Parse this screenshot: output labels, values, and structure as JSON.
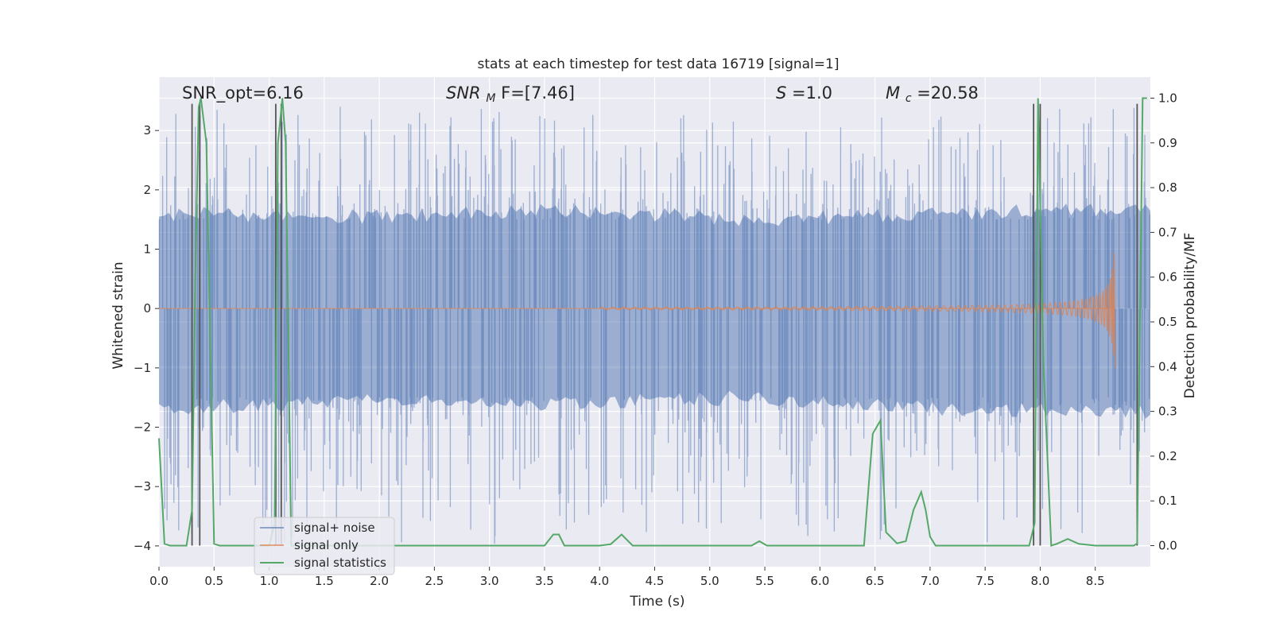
{
  "chart_data": {
    "type": "line",
    "title": "stats at each timestep for test data 16719 [signal=1]",
    "xlabel": "Time (s)",
    "ylabel": "Whitened strain",
    "y2label": "Detection probability/MF",
    "xlim": [
      0.0,
      9.0
    ],
    "ylim": [
      -4.35,
      3.9
    ],
    "y2lim": [
      -0.047,
      1.047
    ],
    "x_ticks": [
      "0.0",
      "0.5",
      "1.0",
      "1.5",
      "2.0",
      "2.5",
      "3.0",
      "3.5",
      "4.0",
      "4.5",
      "5.0",
      "5.5",
      "6.0",
      "6.5",
      "7.0",
      "7.5",
      "8.0",
      "8.5"
    ],
    "y_ticks": [
      "−4",
      "−3",
      "−2",
      "−1",
      "0",
      "1",
      "2",
      "3"
    ],
    "y2_ticks": [
      "0.0",
      "0.1",
      "0.2",
      "0.3",
      "0.4",
      "0.5",
      "0.6",
      "0.7",
      "0.8",
      "0.9",
      "1.0"
    ],
    "annotations": {
      "snr_opt": "SNR_opt=6.16",
      "snr_mf_name": "SNR",
      "snr_mf_sub": "M",
      "snr_mf_rest": "F=[7.46]",
      "s_name": "S",
      "s_rest": "=1.0",
      "mc_name": "M",
      "mc_sub": "c",
      "mc_rest": "=20.58"
    },
    "legend": {
      "position": "lower-left",
      "entries": [
        "signal+ noise",
        "signal only",
        "signal statistics"
      ]
    },
    "colors": {
      "noise": "#4c72b0",
      "signal": "#dd8452",
      "statistics": "#55a868",
      "markers": "#555555",
      "background": "#eaeaf2",
      "grid": "#ffffff"
    },
    "series": [
      {
        "name": "signal statistics",
        "axis": "right",
        "x": [
          0.0,
          0.05,
          0.1,
          0.25,
          0.3,
          0.33,
          0.36,
          0.38,
          0.43,
          0.5,
          0.55,
          1.0,
          1.05,
          1.08,
          1.12,
          1.15,
          1.2,
          1.25,
          1.5,
          2.0,
          2.5,
          3.0,
          3.5,
          3.58,
          3.63,
          3.68,
          3.73,
          3.8,
          4.0,
          4.1,
          4.2,
          4.3,
          4.5,
          5.0,
          5.38,
          5.45,
          5.52,
          5.6,
          6.0,
          6.4,
          6.48,
          6.55,
          6.6,
          6.7,
          6.78,
          6.85,
          6.92,
          6.96,
          7.0,
          7.05,
          7.1,
          7.5,
          7.9,
          7.95,
          7.98,
          8.03,
          8.1,
          8.15,
          8.25,
          8.35,
          8.5,
          8.6,
          8.85,
          8.88,
          8.93,
          8.97
        ],
        "y": [
          0.24,
          0.004,
          0.0,
          0.0,
          0.08,
          0.6,
          0.98,
          1.0,
          0.9,
          0.004,
          0.0,
          0.0,
          0.05,
          0.9,
          1.0,
          0.9,
          0.0,
          0.0,
          0.0,
          0.0,
          0.0,
          0.0,
          0.0,
          0.025,
          0.025,
          0.0,
          0.0,
          0.0,
          0.0,
          0.003,
          0.025,
          0.0,
          0.0,
          0.0,
          0.0,
          0.01,
          0.0,
          0.0,
          0.0,
          0.0,
          0.25,
          0.28,
          0.03,
          0.005,
          0.01,
          0.08,
          0.12,
          0.08,
          0.02,
          0.0,
          0.0,
          0.0,
          0.0,
          0.05,
          1.0,
          0.4,
          0.0,
          0.004,
          0.015,
          0.004,
          0.0,
          0.0,
          0.0,
          0.005,
          1.0,
          1.0
        ]
      },
      {
        "name": "signal only",
        "axis": "left",
        "chirp_start": 4.0,
        "chirp_end": 8.68,
        "peak_amplitude": 1.2
      },
      {
        "name": "signal+ noise",
        "axis": "left",
        "x_range": [
          0.0,
          9.0
        ],
        "band_low": [
          -1.7,
          -1.55,
          -1.6,
          -1.5,
          -1.7,
          -1.75
        ],
        "band_high": [
          1.6,
          1.55,
          1.65,
          1.5,
          1.6,
          1.7
        ],
        "max_spike": 3.4,
        "min_spike": -4.0
      }
    ],
    "markers": {
      "axis": "left",
      "x": [
        0.3,
        0.37,
        1.06,
        1.11,
        7.94,
        8.0,
        8.88
      ],
      "y_top": 3.45
    }
  }
}
